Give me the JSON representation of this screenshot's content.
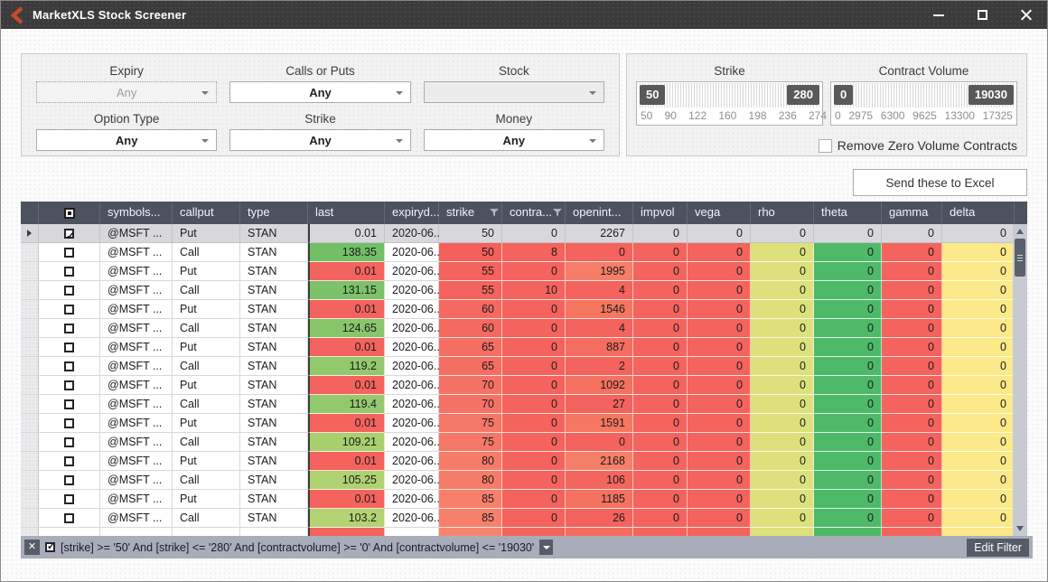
{
  "titlebar": {
    "title": "MarketXLS Stock Screener"
  },
  "filter_panel": {
    "dropdowns": [
      {
        "label": "Expiry",
        "value": "Any",
        "state": "disabled"
      },
      {
        "label": "Calls or Puts",
        "value": "Any",
        "state": "normal"
      },
      {
        "label": "Stock",
        "value": "",
        "state": "empty"
      },
      {
        "label": "Option Type",
        "value": "Any",
        "state": "normal"
      },
      {
        "label": "Strike",
        "value": "Any",
        "state": "normal"
      },
      {
        "label": "Money",
        "value": "Any",
        "state": "normal"
      }
    ]
  },
  "sliders": {
    "strike": {
      "label": "Strike",
      "low": "50",
      "high": "280",
      "ticks": [
        "50",
        "90",
        "122",
        "160",
        "198",
        "236",
        "274"
      ]
    },
    "volume": {
      "label": "Contract Volume",
      "low": "0",
      "high": "19030",
      "ticks": [
        "0",
        "2975",
        "6300",
        "9625",
        "13300",
        "17325"
      ]
    }
  },
  "remove_zero": {
    "label": "Remove Zero Volume Contracts",
    "checked": false
  },
  "send_button_label": "Send these to Excel",
  "grid": {
    "columns": [
      {
        "key": "symbols",
        "label": "symbols...",
        "width": 80,
        "align": "left"
      },
      {
        "key": "callput",
        "label": "callput",
        "width": 75,
        "align": "left"
      },
      {
        "key": "type",
        "label": "type",
        "width": 75,
        "align": "left"
      },
      {
        "key": "last",
        "label": "last",
        "width": 85,
        "align": "right"
      },
      {
        "key": "expiry",
        "label": "expiryd...",
        "width": 60,
        "align": "left"
      },
      {
        "key": "strike",
        "label": "strike",
        "width": 70,
        "align": "right",
        "filter": true
      },
      {
        "key": "contra",
        "label": "contra...",
        "width": 70,
        "align": "right",
        "filter": true
      },
      {
        "key": "openint",
        "label": "openint...",
        "width": 75,
        "align": "right"
      },
      {
        "key": "impvol",
        "label": "impvol",
        "width": 60,
        "align": "right"
      },
      {
        "key": "vega",
        "label": "vega",
        "width": 70,
        "align": "right"
      },
      {
        "key": "rho",
        "label": "rho",
        "width": 70,
        "align": "right"
      },
      {
        "key": "theta",
        "label": "theta",
        "width": 75,
        "align": "right"
      },
      {
        "key": "gamma",
        "label": "gamma",
        "width": 67,
        "align": "right"
      },
      {
        "key": "delta",
        "label": "delta",
        "width": 80,
        "align": "right"
      }
    ],
    "constants": {
      "symbols": "@MSFT ...",
      "type": "STAN",
      "expiry": "2020-06..."
    },
    "greek_columns": [
      "impvol",
      "vega",
      "rho",
      "theta",
      "gamma",
      "delta"
    ],
    "greek_value": "0",
    "default_colors": {
      "contra": "#f4635d",
      "impvol": "#f4635d",
      "vega": "#f4635d",
      "rho": "#dde17c",
      "theta": "#4fb96a",
      "gamma": "#f4635d",
      "delta": "#fbe98a"
    },
    "selected_bg": "#d8d8dc",
    "rows": [
      {
        "checked": true,
        "selected": true,
        "callput": "Put",
        "last": "0.01",
        "strike": "50",
        "contra": "0",
        "openint": "2267",
        "colors": {}
      },
      {
        "callput": "Call",
        "last": "138.35",
        "strike": "50",
        "contra": "8",
        "openint": "0",
        "colors": {
          "last": "#72bf66",
          "strike": "#f4605b",
          "openint": "#f4635d"
        }
      },
      {
        "callput": "Put",
        "last": "0.01",
        "strike": "55",
        "contra": "0",
        "openint": "1995",
        "colors": {
          "last": "#f4635d",
          "strike": "#f4635d",
          "openint": "#f67d68"
        }
      },
      {
        "callput": "Call",
        "last": "131.15",
        "strike": "55",
        "contra": "10",
        "openint": "4",
        "colors": {
          "last": "#7cc269",
          "strike": "#f4635d",
          "openint": "#f4635d"
        }
      },
      {
        "callput": "Put",
        "last": "0.01",
        "strike": "60",
        "contra": "0",
        "openint": "1546",
        "colors": {
          "last": "#f4635d",
          "strike": "#f56a60",
          "openint": "#f5765f"
        }
      },
      {
        "callput": "Call",
        "last": "124.65",
        "strike": "60",
        "contra": "0",
        "openint": "4",
        "colors": {
          "last": "#88c66b",
          "strike": "#f56a60",
          "openint": "#f4635d"
        }
      },
      {
        "callput": "Put",
        "last": "0.01",
        "strike": "65",
        "contra": "0",
        "openint": "887",
        "colors": {
          "last": "#f4635d",
          "strike": "#f56e62",
          "openint": "#f56c60"
        }
      },
      {
        "callput": "Call",
        "last": "119.2",
        "strike": "65",
        "contra": "0",
        "openint": "2",
        "colors": {
          "last": "#93c96d",
          "strike": "#f56e62",
          "openint": "#f4635d"
        }
      },
      {
        "callput": "Put",
        "last": "0.01",
        "strike": "70",
        "contra": "0",
        "openint": "1092",
        "colors": {
          "last": "#f4635d",
          "strike": "#f57365",
          "openint": "#f5715f"
        }
      },
      {
        "callput": "Call",
        "last": "119.4",
        "strike": "70",
        "contra": "0",
        "openint": "27",
        "colors": {
          "last": "#93c96d",
          "strike": "#f57365",
          "openint": "#f4635d"
        }
      },
      {
        "callput": "Put",
        "last": "0.01",
        "strike": "75",
        "contra": "0",
        "openint": "1591",
        "colors": {
          "last": "#f4635d",
          "strike": "#f57767",
          "openint": "#f6775f"
        }
      },
      {
        "callput": "Call",
        "last": "109.21",
        "strike": "75",
        "contra": "0",
        "openint": "0",
        "colors": {
          "last": "#a8d06f",
          "strike": "#f57767",
          "openint": "#f4635d"
        }
      },
      {
        "callput": "Put",
        "last": "0.01",
        "strike": "80",
        "contra": "0",
        "openint": "2168",
        "colors": {
          "last": "#f4635d",
          "strike": "#f67c6a",
          "openint": "#f67f69"
        }
      },
      {
        "callput": "Call",
        "last": "105.25",
        "strike": "80",
        "contra": "0",
        "openint": "106",
        "colors": {
          "last": "#afd271",
          "strike": "#f67c6a",
          "openint": "#f4665d"
        }
      },
      {
        "callput": "Put",
        "last": "0.01",
        "strike": "85",
        "contra": "0",
        "openint": "1185",
        "colors": {
          "last": "#f4635d",
          "strike": "#f7806c",
          "openint": "#f57260"
        }
      },
      {
        "callput": "Call",
        "last": "103.2",
        "strike": "85",
        "contra": "0",
        "openint": "26",
        "colors": {
          "last": "#b4d372",
          "strike": "#f7806c",
          "openint": "#f4635d"
        }
      }
    ],
    "partial_row": {
      "colors": {
        "last": "#f4635d",
        "strike": "#f7846e",
        "openint": "#f56c60"
      }
    }
  },
  "filter_bar": {
    "expression": "[strike] >= '50' And [strike] <= '280' And [contractvolume] >= '0' And [contractvolume] <= '19030'",
    "checked": true,
    "edit_button_label": "Edit Filter"
  }
}
